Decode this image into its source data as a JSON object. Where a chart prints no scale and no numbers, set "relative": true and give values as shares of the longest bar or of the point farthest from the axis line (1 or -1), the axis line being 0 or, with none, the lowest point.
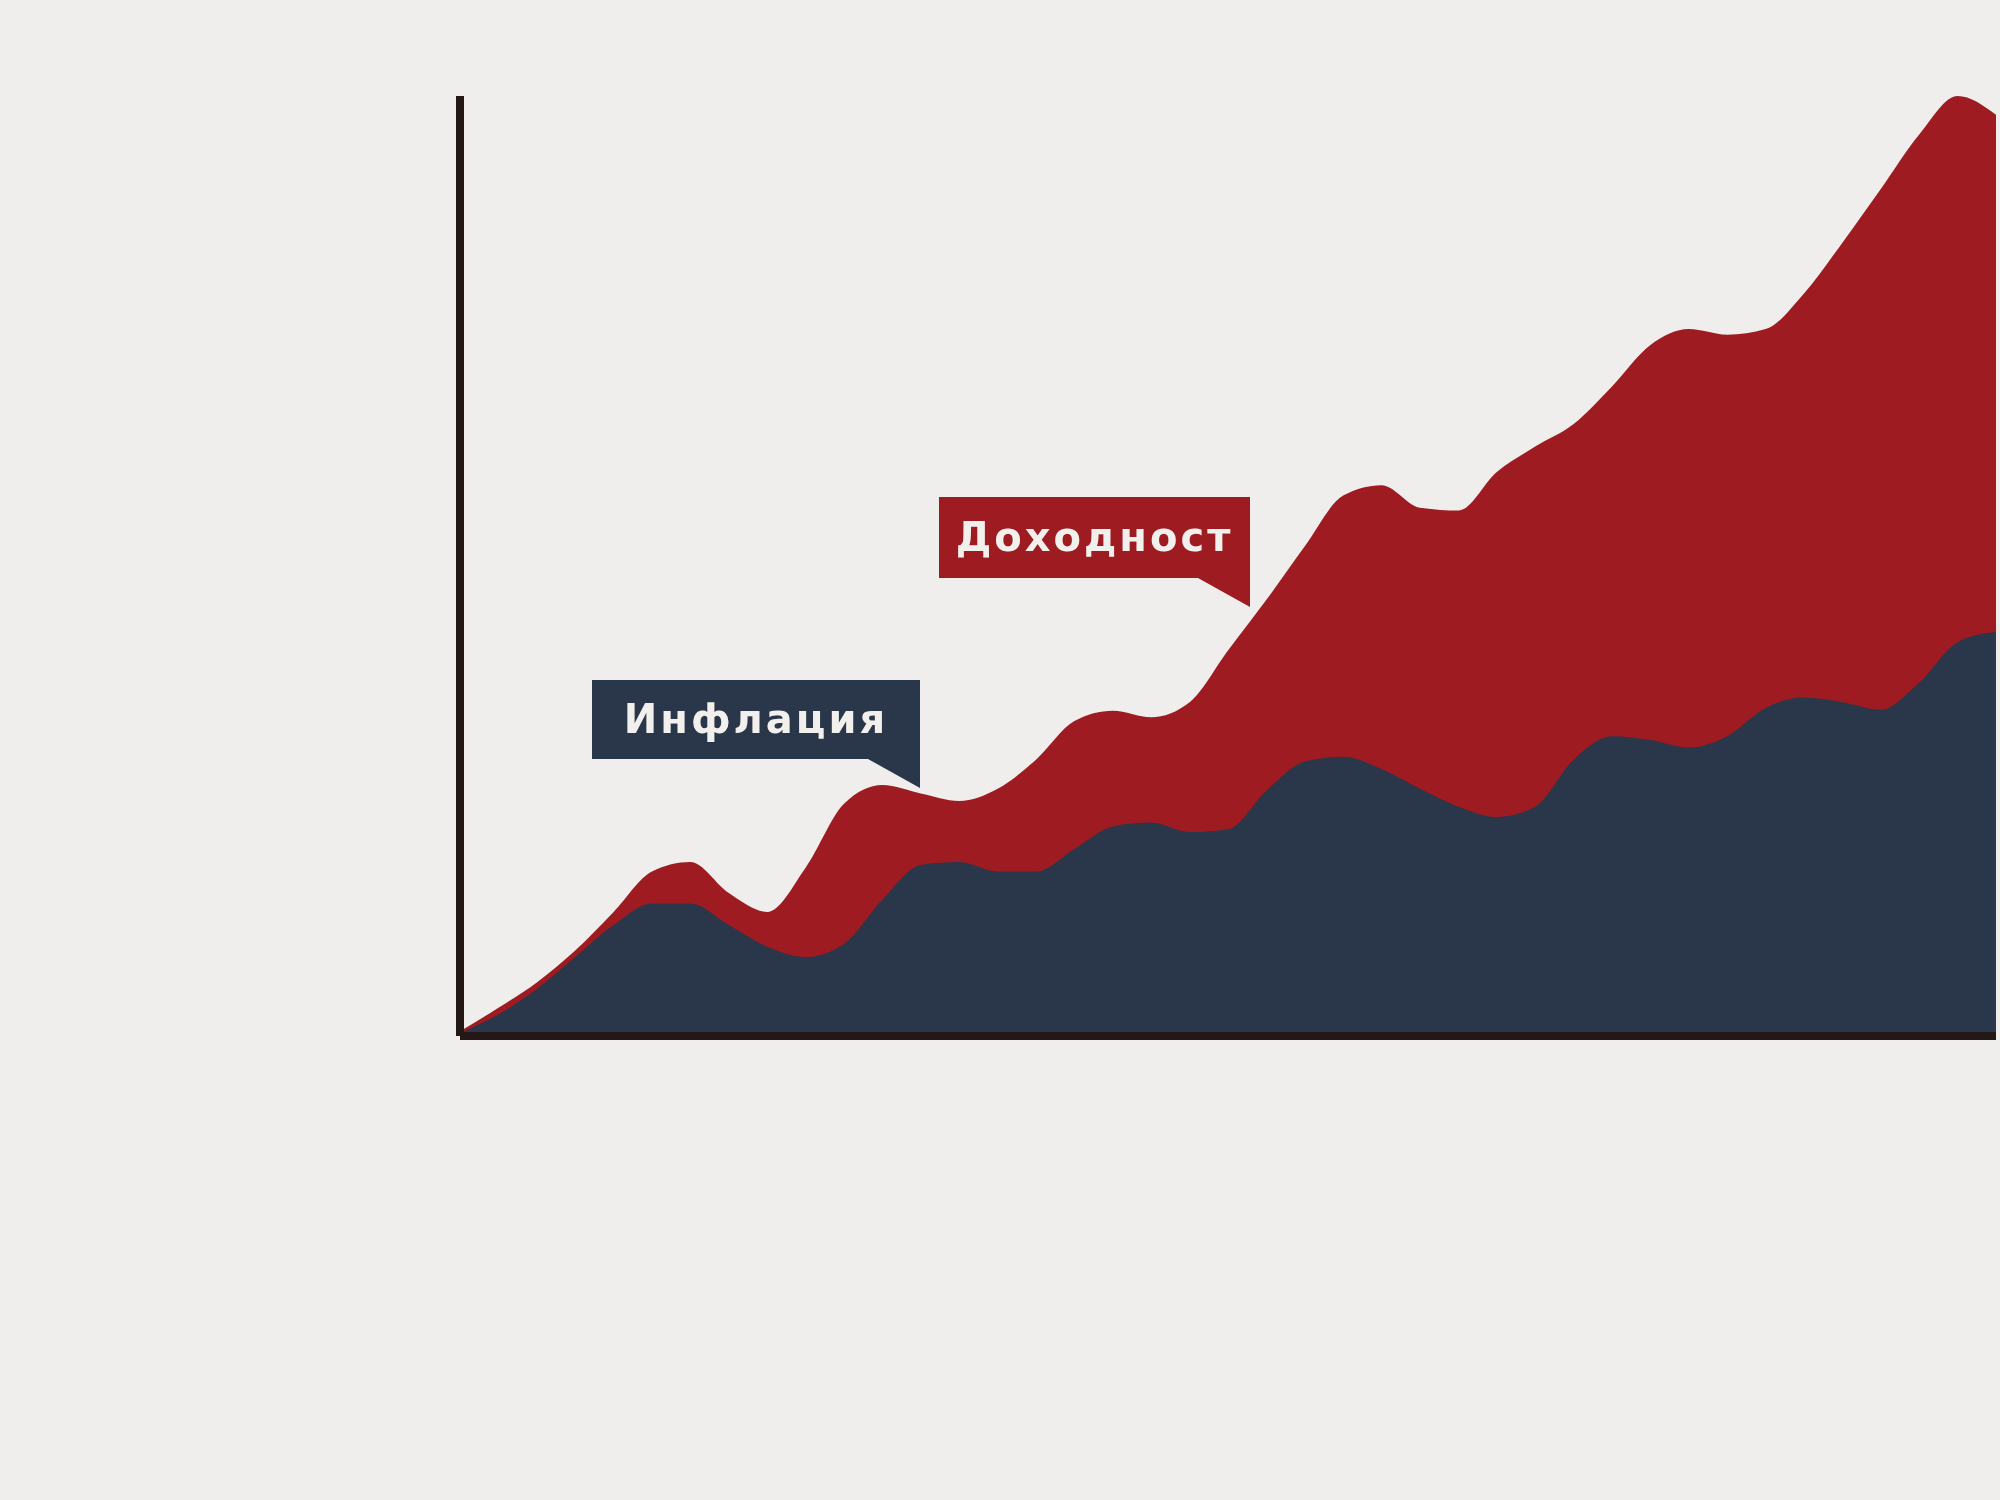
{
  "chart_data": {
    "type": "area",
    "relative": true,
    "categories": [
      null,
      null,
      null,
      null,
      null,
      null,
      null,
      null,
      null,
      null,
      null,
      null,
      null,
      null,
      null,
      null,
      null,
      null,
      null,
      null,
      null,
      null,
      null,
      null,
      null,
      null,
      null,
      null,
      null,
      null,
      null,
      null,
      null,
      null,
      null,
      null,
      null,
      null,
      null,
      null,
      null
    ],
    "series": [
      {
        "name": "Доходност",
        "color": "#9e1c21",
        "values": [
          0.005,
          0.03,
          0.057,
          0.091,
          0.132,
          0.175,
          0.185,
          0.152,
          0.132,
          0.179,
          0.247,
          0.267,
          0.258,
          0.25,
          0.263,
          0.294,
          0.335,
          0.346,
          0.339,
          0.355,
          0.41,
          0.464,
          0.521,
          0.575,
          0.586,
          0.562,
          0.559,
          0.6,
          0.627,
          0.651,
          0.691,
          0.735,
          0.752,
          0.746,
          0.752,
          0.79,
          0.844,
          0.901,
          0.959,
          1,
          0.98
        ]
      },
      {
        "name": "Инфлация",
        "color": "#2a364a",
        "values": [
          0.003,
          0.023,
          0.05,
          0.084,
          0.118,
          0.141,
          0.141,
          0.118,
          0.095,
          0.084,
          0.098,
          0.145,
          0.182,
          0.185,
          0.175,
          0.175,
          0.199,
          0.223,
          0.227,
          0.217,
          0.22,
          0.261,
          0.292,
          0.297,
          0.284,
          0.263,
          0.244,
          0.233,
          0.244,
          0.294,
          0.319,
          0.315,
          0.307,
          0.319,
          0.349,
          0.36,
          0.355,
          0.347,
          0.376,
          0.419,
          0.43
        ]
      }
    ],
    "grid": false,
    "legend": false
  }
}
